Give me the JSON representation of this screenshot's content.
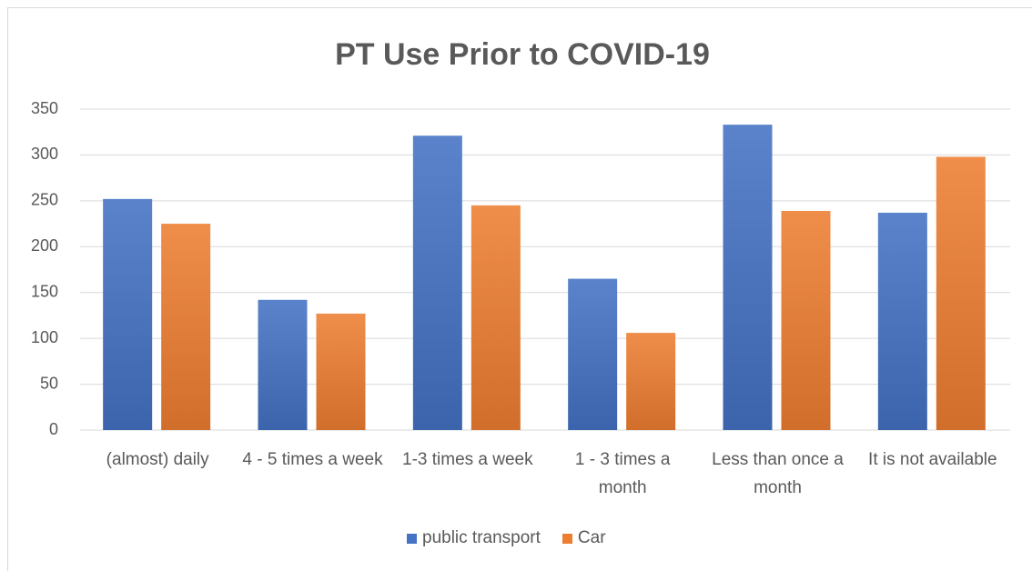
{
  "chart_data": {
    "type": "bar",
    "title": "PT Use Prior to COVID-19",
    "categories": [
      "(almost) daily",
      "4 - 5 times a week",
      "1-3 times a week",
      "1 - 3 times a month",
      "Less than once a month",
      "It is not available"
    ],
    "series": [
      {
        "name": "public transport",
        "color": "#4472c4",
        "values": [
          252,
          142,
          321,
          165,
          333,
          237
        ]
      },
      {
        "name": "Car",
        "color": "#ed7d31",
        "values": [
          225,
          127,
          245,
          106,
          239,
          298
        ]
      }
    ],
    "ylim": [
      0,
      350
    ],
    "yticks": [
      0,
      50,
      100,
      150,
      200,
      250,
      300,
      350
    ],
    "grid": true,
    "legend": "bottom"
  }
}
